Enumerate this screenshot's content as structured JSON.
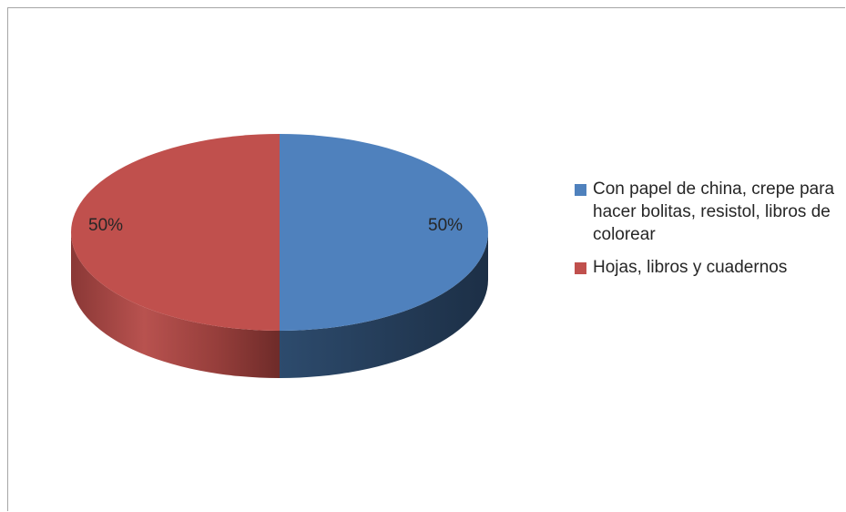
{
  "chart_data": {
    "type": "pie",
    "style": "3d",
    "legend_position": "right",
    "slices": [
      {
        "label": "Con papel de china, crepe para hacer bolitas, resistol, libros de colorear",
        "value": 50,
        "display": "50%",
        "color": "#4f81bd"
      },
      {
        "label": "Hojas, libros y cuadernos",
        "value": 50,
        "display": "50%",
        "color": "#c0504d"
      }
    ]
  },
  "legend": {
    "items": [
      {
        "text": "Con papel de china, crepe para hacer bolitas, resistol, libros de colorear",
        "color": "#4f81bd"
      },
      {
        "text": "Hojas, libros y cuadernos",
        "color": "#c0504d"
      }
    ]
  }
}
